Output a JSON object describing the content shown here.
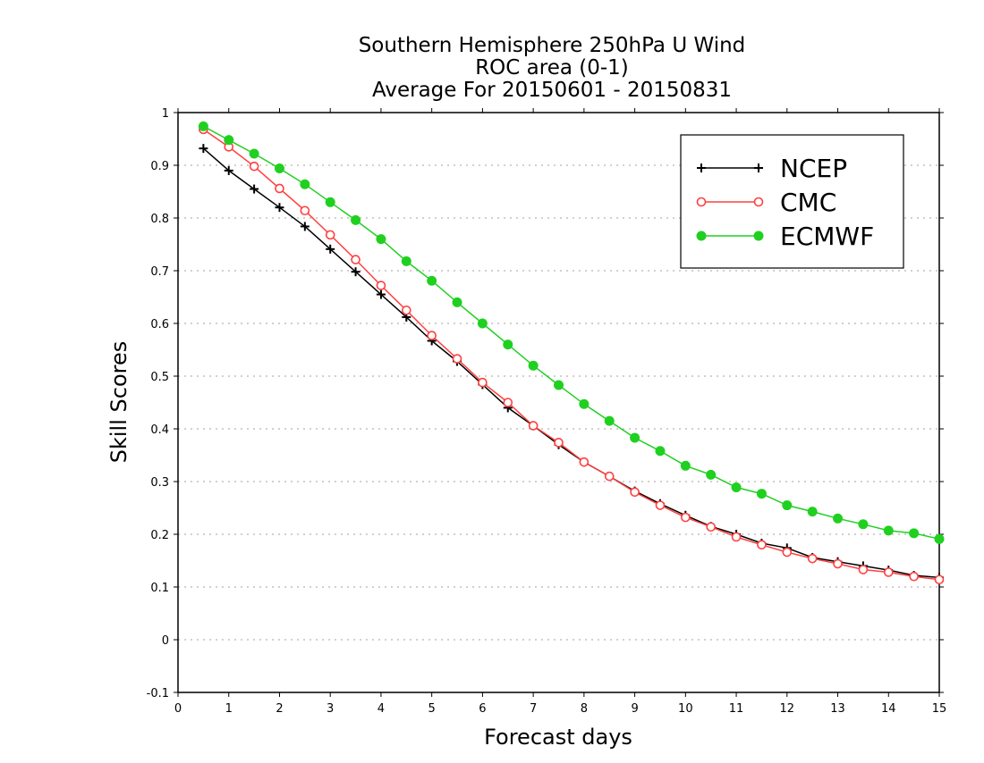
{
  "chart_data": {
    "type": "line",
    "title": [
      "Southern Hemisphere 250hPa U Wind",
      "ROC area (0-1)",
      "Average For 20150601 - 20150831"
    ],
    "xlabel": "Forecast days",
    "ylabel": "Skill Scores",
    "xlim": [
      0,
      15
    ],
    "ylim": [
      -0.1,
      1
    ],
    "xticks": [
      "0",
      "1",
      "2",
      "3",
      "4",
      "5",
      "6",
      "7",
      "8",
      "9",
      "10",
      "11",
      "12",
      "13",
      "14",
      "15"
    ],
    "yticks": [
      "-0.1",
      "0",
      "0.1",
      "0.2",
      "0.3",
      "0.4",
      "0.5",
      "0.6",
      "0.7",
      "0.8",
      "0.9",
      "1"
    ],
    "grid": "horizontal dotted",
    "legend_position": "top-right",
    "x": [
      0.5,
      1,
      1.5,
      2,
      2.5,
      3,
      3.5,
      4,
      4.5,
      5,
      5.5,
      6,
      6.5,
      7,
      7.5,
      8,
      8.5,
      9,
      9.5,
      10,
      10.5,
      11,
      11.5,
      12,
      12.5,
      13,
      13.5,
      14,
      14.5,
      15
    ],
    "series": [
      {
        "name": "NCEP",
        "color": "#000000",
        "marker": "plus",
        "values": [
          0.932,
          0.89,
          0.855,
          0.82,
          0.784,
          0.741,
          0.698,
          0.655,
          0.612,
          0.567,
          0.528,
          0.484,
          0.44,
          0.406,
          0.37,
          0.337,
          0.31,
          0.282,
          0.258,
          0.236,
          0.215,
          0.2,
          0.183,
          0.174,
          0.156,
          0.148,
          0.14,
          0.132,
          0.122,
          0.118
        ]
      },
      {
        "name": "CMC",
        "color": "#ff4040",
        "marker": "open-circle",
        "values": [
          0.968,
          0.935,
          0.898,
          0.856,
          0.814,
          0.768,
          0.721,
          0.672,
          0.625,
          0.577,
          0.533,
          0.488,
          0.45,
          0.406,
          0.374,
          0.337,
          0.31,
          0.28,
          0.255,
          0.232,
          0.214,
          0.195,
          0.18,
          0.166,
          0.154,
          0.144,
          0.133,
          0.128,
          0.12,
          0.114
        ]
      },
      {
        "name": "ECMWF",
        "color": "#20d020",
        "marker": "filled-circle",
        "values": [
          0.974,
          0.948,
          0.922,
          0.894,
          0.864,
          0.83,
          0.796,
          0.76,
          0.718,
          0.681,
          0.64,
          0.6,
          0.56,
          0.52,
          0.483,
          0.447,
          0.415,
          0.383,
          0.358,
          0.33,
          0.313,
          0.289,
          0.277,
          0.255,
          0.243,
          0.23,
          0.219,
          0.207,
          0.202,
          0.191
        ]
      }
    ]
  }
}
